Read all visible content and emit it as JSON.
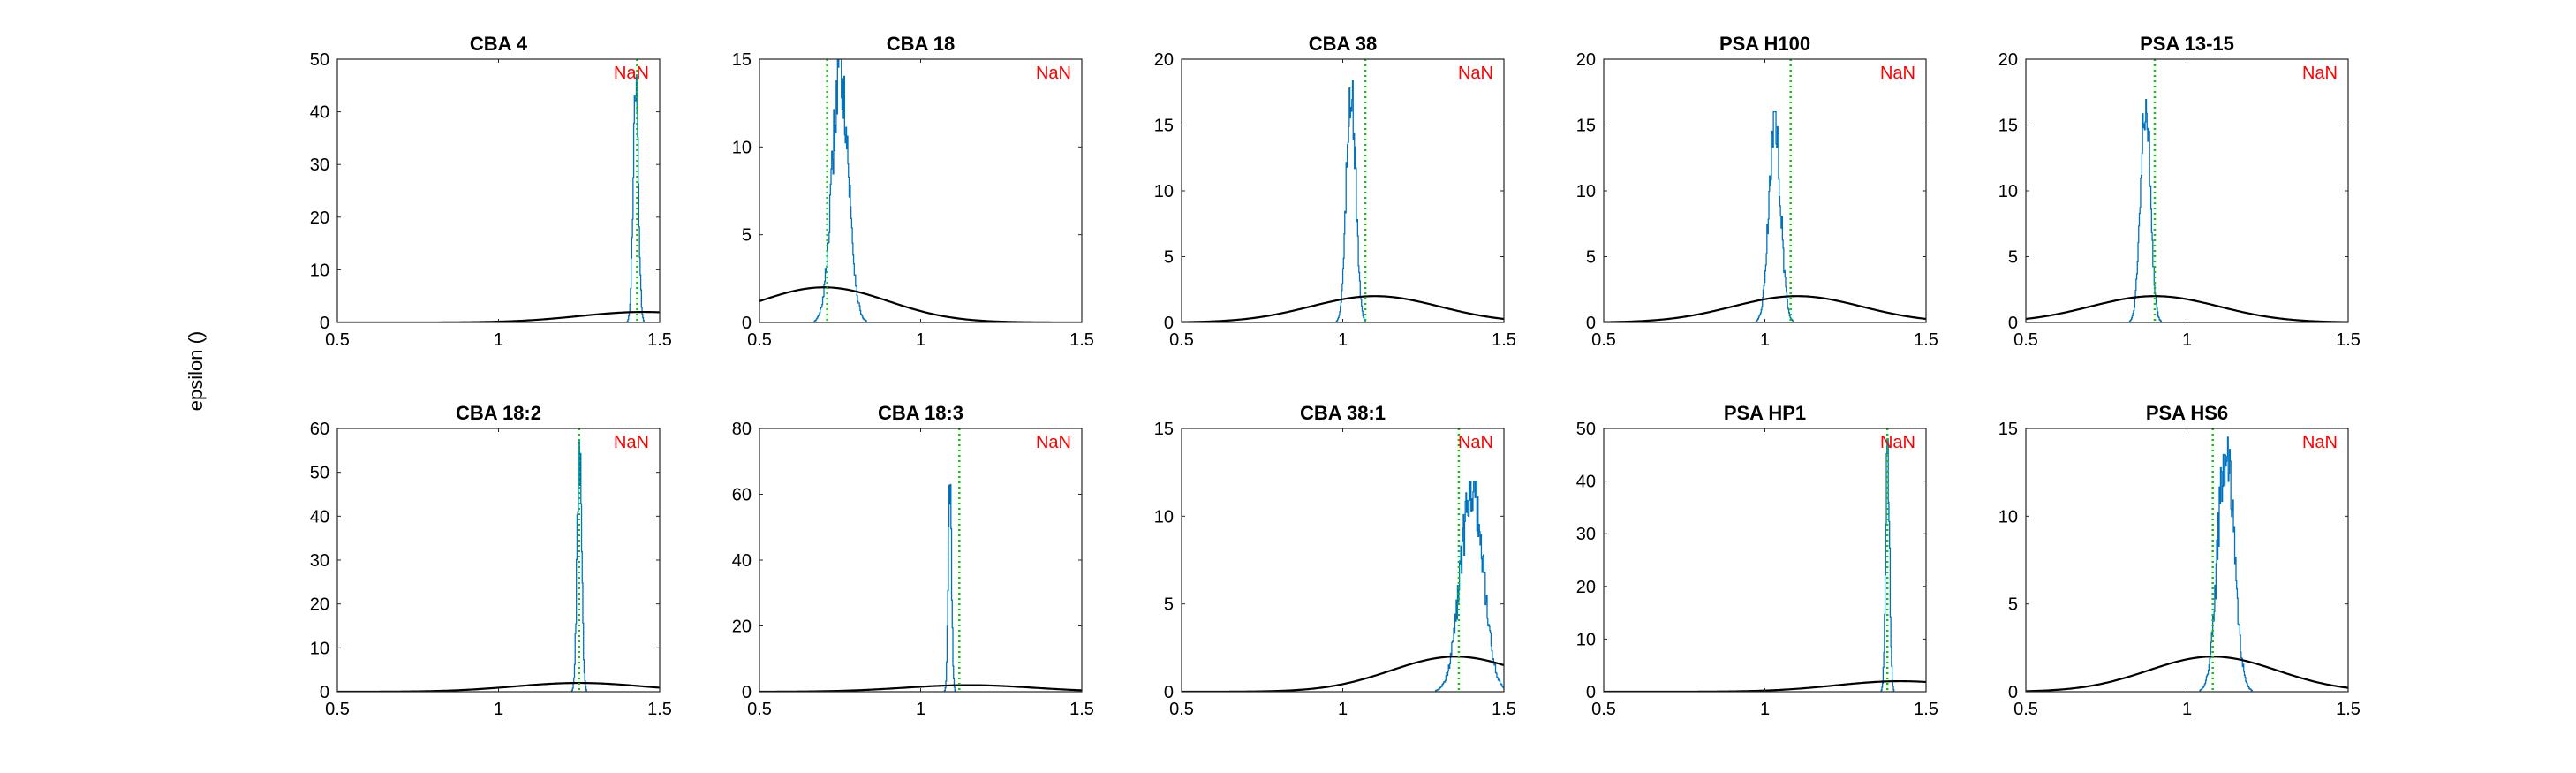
{
  "figure": {
    "ylabel": "epsilon ()"
  },
  "colors": {
    "histogram": "#0072BD",
    "prior": "#000000",
    "marker": "#00CC00",
    "annotation": "#FF0000"
  },
  "chart_data": [
    {
      "type": "line",
      "title": "CBA 4",
      "annotation": "NaN",
      "xlim": [
        0.5,
        1.5
      ],
      "ylim": [
        0,
        50
      ],
      "xticks": [
        "0.5",
        "1",
        "1.5"
      ],
      "yticks": [
        "0",
        "10",
        "20",
        "30",
        "40",
        "50"
      ],
      "grid": false,
      "series": [
        {
          "kind": "histogram",
          "center": 1.425,
          "width": 0.008,
          "peak": 47
        },
        {
          "kind": "prior",
          "mean": 1.45,
          "sd": 0.2,
          "peak": 2
        }
      ],
      "marker_x": 1.43
    },
    {
      "type": "line",
      "title": "CBA 18",
      "annotation": "NaN",
      "xlim": [
        0.5,
        1.5
      ],
      "ylim": [
        0,
        15
      ],
      "xticks": [
        "0.5",
        "1",
        "1.5"
      ],
      "yticks": [
        "0",
        "5",
        "10",
        "15"
      ],
      "grid": false,
      "series": [
        {
          "kind": "histogram",
          "center": 0.75,
          "width": 0.025,
          "peak": 15
        },
        {
          "kind": "prior",
          "mean": 0.7,
          "sd": 0.2,
          "peak": 2
        }
      ],
      "marker_x": 0.71
    },
    {
      "type": "line",
      "title": "CBA 38",
      "annotation": "NaN",
      "xlim": [
        0.5,
        1.5
      ],
      "ylim": [
        0,
        20
      ],
      "xticks": [
        "0.5",
        "1",
        "1.5"
      ],
      "yticks": [
        "0",
        "5",
        "10",
        "15",
        "20"
      ],
      "grid": false,
      "series": [
        {
          "kind": "histogram",
          "center": 1.025,
          "width": 0.014,
          "peak": 19
        },
        {
          "kind": "prior",
          "mean": 1.1,
          "sd": 0.2,
          "peak": 2
        }
      ],
      "marker_x": 1.07
    },
    {
      "type": "line",
      "title": "PSA H100",
      "annotation": "NaN",
      "xlim": [
        0.5,
        1.5
      ],
      "ylim": [
        0,
        20
      ],
      "xticks": [
        "0.5",
        "1",
        "1.5"
      ],
      "yticks": [
        "0",
        "5",
        "10",
        "15",
        "20"
      ],
      "grid": false,
      "series": [
        {
          "kind": "histogram",
          "center": 1.03,
          "width": 0.018,
          "peak": 16
        },
        {
          "kind": "prior",
          "mean": 1.1,
          "sd": 0.2,
          "peak": 2
        }
      ],
      "marker_x": 1.08
    },
    {
      "type": "line",
      "title": "PSA 13-15",
      "annotation": "NaN",
      "xlim": [
        0.5,
        1.5
      ],
      "ylim": [
        0,
        20
      ],
      "xticks": [
        "0.5",
        "1",
        "1.5"
      ],
      "yticks": [
        "0",
        "5",
        "10",
        "15",
        "20"
      ],
      "grid": false,
      "series": [
        {
          "kind": "histogram",
          "center": 0.87,
          "width": 0.015,
          "peak": 18
        },
        {
          "kind": "prior",
          "mean": 0.9,
          "sd": 0.2,
          "peak": 2
        }
      ],
      "marker_x": 0.9
    },
    {
      "type": "line",
      "title": "CBA 18:2",
      "annotation": "NaN",
      "xlim": [
        0.5,
        1.5
      ],
      "ylim": [
        0,
        60
      ],
      "xticks": [
        "0.5",
        "1",
        "1.5"
      ],
      "yticks": [
        "0",
        "10",
        "20",
        "30",
        "40",
        "50",
        "60"
      ],
      "grid": false,
      "series": [
        {
          "kind": "histogram",
          "center": 1.25,
          "width": 0.007,
          "peak": 57
        },
        {
          "kind": "prior",
          "mean": 1.25,
          "sd": 0.2,
          "peak": 2
        }
      ],
      "marker_x": 1.25
    },
    {
      "type": "line",
      "title": "CBA 18:3",
      "annotation": "NaN",
      "xlim": [
        0.5,
        1.5
      ],
      "ylim": [
        0,
        80
      ],
      "xticks": [
        "0.5",
        "1",
        "1.5"
      ],
      "yticks": [
        "0",
        "20",
        "40",
        "60",
        "80"
      ],
      "grid": false,
      "series": [
        {
          "kind": "histogram",
          "center": 1.09,
          "width": 0.005,
          "peak": 65
        },
        {
          "kind": "prior",
          "mean": 1.15,
          "sd": 0.2,
          "peak": 2
        }
      ],
      "marker_x": 1.12
    },
    {
      "type": "line",
      "title": "CBA 38:1",
      "annotation": "NaN",
      "xlim": [
        0.5,
        1.5
      ],
      "ylim": [
        0,
        15
      ],
      "xticks": [
        "0.5",
        "1",
        "1.5"
      ],
      "yticks": [
        "0",
        "5",
        "10",
        "15"
      ],
      "grid": false,
      "series": [
        {
          "kind": "histogram",
          "center": 1.4,
          "width": 0.035,
          "peak": 12
        },
        {
          "kind": "prior",
          "mean": 1.35,
          "sd": 0.2,
          "peak": 2
        }
      ],
      "marker_x": 1.36
    },
    {
      "type": "line",
      "title": "PSA HP1",
      "annotation": "NaN",
      "xlim": [
        0.5,
        1.5
      ],
      "ylim": [
        0,
        50
      ],
      "xticks": [
        "0.5",
        "1",
        "1.5"
      ],
      "yticks": [
        "0",
        "10",
        "20",
        "30",
        "40",
        "50"
      ],
      "grid": false,
      "series": [
        {
          "kind": "histogram",
          "center": 1.38,
          "width": 0.006,
          "peak": 48
        },
        {
          "kind": "prior",
          "mean": 1.42,
          "sd": 0.2,
          "peak": 2
        }
      ],
      "marker_x": 1.38
    },
    {
      "type": "line",
      "title": "PSA HS6",
      "annotation": "NaN",
      "xlim": [
        0.5,
        1.5
      ],
      "ylim": [
        0,
        15
      ],
      "xticks": [
        "0.5",
        "1",
        "1.5"
      ],
      "yticks": [
        "0",
        "5",
        "10",
        "15"
      ],
      "grid": false,
      "series": [
        {
          "kind": "histogram",
          "center": 1.12,
          "width": 0.025,
          "peak": 14.5
        },
        {
          "kind": "prior",
          "mean": 1.08,
          "sd": 0.2,
          "peak": 2
        }
      ],
      "marker_x": 1.08
    }
  ]
}
